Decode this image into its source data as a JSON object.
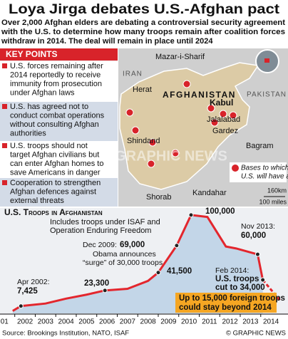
{
  "title": "Loya Jirga debates U.S.-Afghan pact",
  "subtitle": [
    "Over 2,000 Afghan elders are debating a controversial security agreement",
    "with the U.S. to determine how many troops remain after coalition forces",
    "withdraw in 2014. The deal will remain in place until 2024"
  ],
  "key_points": {
    "heading": "KEY POINTS",
    "items": [
      [
        "U.S. forces remaining after",
        "2014 reportedly to receive",
        "immunity from prosecution",
        "under Afghan laws"
      ],
      [
        "U.S. has agreed not to",
        "conduct combat operations",
        "without consulting Afghan",
        "authorities"
      ],
      [
        "U.S. troops should not",
        "target Afghan civilians but",
        "can enter Afghan homes to",
        "save Americans in danger"
      ],
      [
        "Cooperation to strengthen",
        "Afghan defences against",
        "external threats"
      ]
    ]
  },
  "map": {
    "labels": [
      "Mazar-i-Sharif",
      "IRAN",
      "PAKISTAN",
      "AFGHANISTAN",
      "Herat",
      "Kabul",
      "Jalalabad",
      "Gardez",
      "Bagram",
      "Shindand",
      "Shorab",
      "Kandahar"
    ],
    "legend": [
      "Bases to which",
      "U.S. will have access"
    ],
    "scale": [
      "160km",
      "100 miles"
    ],
    "watermark": "GRAPHIC NEWS"
  },
  "chart_data": {
    "type": "line",
    "title": "U.S. Troops in Afghanistan",
    "subtitle": [
      "Includes troops under ISAF and",
      "Operation Enduring Freedom"
    ],
    "x": [
      2001.9,
      2002.3,
      2003.5,
      2004.5,
      2005.5,
      2006.4,
      2007.5,
      2008.5,
      2009.0,
      2009.9,
      2010.6,
      2011.4,
      2012.3,
      2012.8,
      2013.85,
      2014.1,
      2014.95
    ],
    "series": [
      {
        "color": "#e3262d",
        "values": [
          2500,
          7425,
          10000,
          15000,
          19000,
          23300,
          25000,
          33000,
          41500,
          69000,
          100000,
          98000,
          68000,
          66000,
          60000,
          34000,
          null
        ]
      },
      {
        "color": "#e3262d",
        "dashed": true,
        "values": [
          null,
          null,
          null,
          null,
          null,
          null,
          null,
          null,
          null,
          null,
          null,
          null,
          null,
          null,
          null,
          34000,
          13000
        ]
      }
    ],
    "area_color": "#c3d6e8",
    "xlim": [
      2001.28,
      2015.33
    ],
    "ylim": [
      0,
      105000
    ],
    "xticks": [
      {
        "value": 2001,
        "label": "01"
      },
      2002,
      2003,
      2004,
      2005,
      2006,
      2007,
      2008,
      2009,
      2010,
      2011,
      2012,
      2013,
      2014
    ],
    "annotations": [
      "Apr 2002:",
      "7,425",
      "23,300",
      "Dec 2009:",
      "69,000",
      "Obama announces",
      "“surge” of 30,000 troops",
      "41,500",
      "100,000",
      "Nov 2013:",
      "60,000",
      "Feb 2014:",
      "U.S. troops",
      "cut to 34,000",
      "Up to 15,000 foreign troops",
      "could stay beyond 2014"
    ]
  },
  "footer": {
    "source": "Source: Brookings Institution, NATO, ISAF",
    "credit": "© GRAPHIC NEWS"
  }
}
